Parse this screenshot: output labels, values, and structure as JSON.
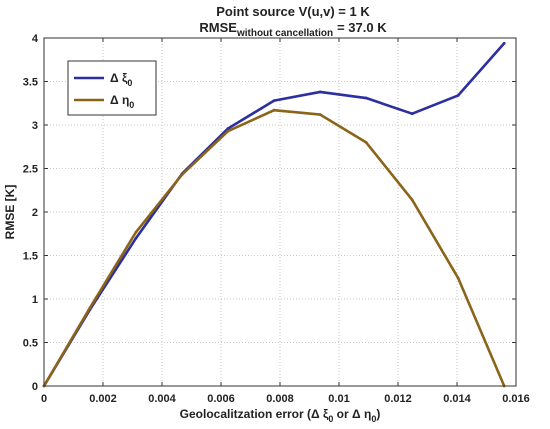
{
  "chart_data": {
    "type": "line",
    "title": "Point source V(u,v) = 1 K",
    "subtitle": {
      "main": "RMSE",
      "subscript": "without cancellation",
      "suffix": "= 37.0 K"
    },
    "xlabel": {
      "prefix": "Geolocalitzation error (Δ ξ",
      "sub1": "0",
      "middle": " or Δ η",
      "sub2": "0",
      "suffix": ")"
    },
    "ylabel": "RMSE [K]",
    "xlim": [
      0,
      0.016
    ],
    "ylim": [
      0,
      4
    ],
    "xticks": [
      0,
      0.002,
      0.004,
      0.006,
      0.008,
      0.01,
      0.012,
      0.014,
      0.016
    ],
    "xtick_labels": [
      "0",
      "0.002",
      "0.004",
      "0.006",
      "0.008",
      "0.01",
      "0.012",
      "0.014",
      "0.016"
    ],
    "yticks": [
      0,
      0.5,
      1,
      1.5,
      2,
      2.5,
      3,
      3.5,
      4
    ],
    "ytick_labels": [
      "0",
      "0.5",
      "1",
      "1.5",
      "2",
      "2.5",
      "3",
      "3.5",
      "4"
    ],
    "grid": true,
    "legend_position": "top-left",
    "x": [
      0,
      0.00156,
      0.00312,
      0.00468,
      0.00624,
      0.0078,
      0.00936,
      0.01092,
      0.01248,
      0.01404,
      0.0156
    ],
    "series": [
      {
        "legend": {
          "prefix": "Δ ξ",
          "sub": "0"
        },
        "color": "#2b2fa0",
        "values": [
          0,
          0.88,
          1.7,
          2.44,
          2.96,
          3.28,
          3.38,
          3.31,
          3.13,
          3.34,
          3.94
        ]
      },
      {
        "legend": {
          "prefix": "Δ η",
          "sub": "0"
        },
        "color": "#8a6419",
        "values": [
          0,
          0.9,
          1.77,
          2.43,
          2.93,
          3.17,
          3.12,
          2.8,
          2.14,
          1.24,
          0
        ]
      }
    ]
  }
}
